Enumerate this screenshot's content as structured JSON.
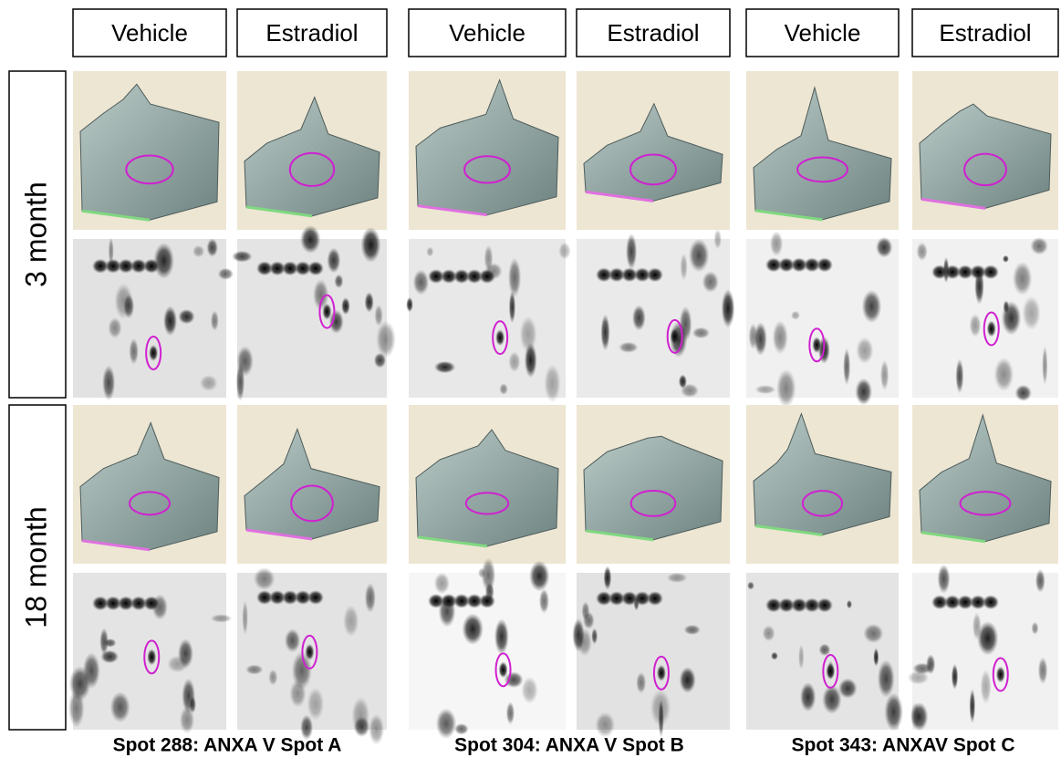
{
  "column_headers": [
    "Vehicle",
    "Estradiol",
    "Vehicle",
    "Estradiol",
    "Vehicle",
    "Estradiol"
  ],
  "row_labels": [
    "3 month",
    "18 month"
  ],
  "spot_labels": [
    "Spot 288: ANXA V Spot A",
    "Spot 304: ANXA V Spot B",
    "Spot 343: ANXAV Spot C"
  ]
}
